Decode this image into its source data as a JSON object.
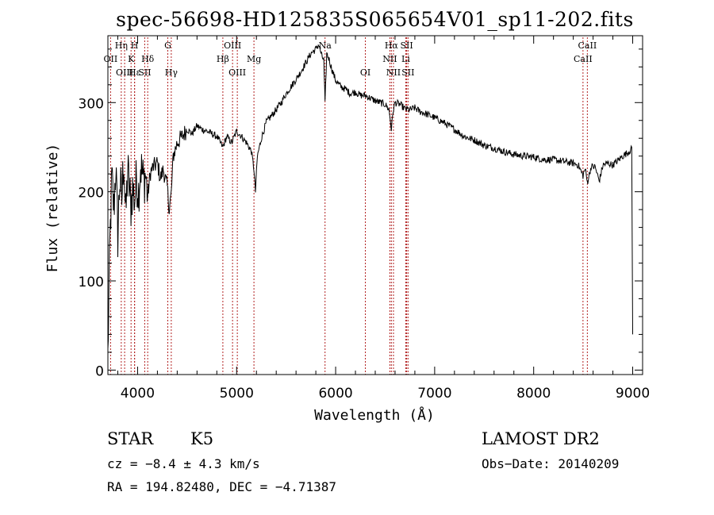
{
  "title": "spec-56698-HD125835S065654V01_sp11-202.fits",
  "info": {
    "object_class": "STAR",
    "subclass": "K5",
    "survey": "LAMOST DR2",
    "cz": "cz = −8.4 ± 4.3 km/s",
    "obs_date": "Obs−Date: 20140209",
    "coords": "RA = 194.82480, DEC =  −4.71387"
  },
  "chart_data": {
    "type": "line",
    "title": "spec-56698-HD125835S065654V01_sp11-202.fits",
    "xlabel": "Wavelength (Å)",
    "ylabel": "Flux (relative)",
    "xlim": [
      3700,
      9100
    ],
    "ylim": [
      -5,
      375
    ],
    "xticks": [
      4000,
      5000,
      6000,
      7000,
      8000,
      9000
    ],
    "yticks": [
      0,
      100,
      200,
      300
    ],
    "xticklabels": [
      "4000",
      "5000",
      "6000",
      "7000",
      "8000",
      "9000"
    ],
    "yticklabels": [
      "0",
      "100",
      "200",
      "300"
    ],
    "grid": false,
    "line_color": "#000000",
    "marker_color": "#b22222",
    "series": [
      {
        "x": [
          3700,
          3720,
          3740,
          3760,
          3780,
          3800,
          3820,
          3840,
          3860,
          3880,
          3900,
          3920,
          3933,
          3950,
          3969,
          3990,
          4010,
          4030,
          4060,
          4080,
          4102,
          4130,
          4160,
          4200,
          4230,
          4260,
          4300,
          4320,
          4340,
          4360,
          4400,
          4450,
          4500,
          4550,
          4600,
          4650,
          4700,
          4750,
          4800,
          4861,
          4900,
          4950,
          5000,
          5050,
          5100,
          5150,
          5175,
          5190,
          5210,
          5250,
          5300,
          5350,
          5400,
          5450,
          5500,
          5550,
          5600,
          5650,
          5700,
          5750,
          5800,
          5830,
          5860,
          5880,
          5893,
          5910,
          5930,
          5960,
          6000,
          6050,
          6100,
          6150,
          6200,
          6250,
          6300,
          6350,
          6400,
          6450,
          6500,
          6540,
          6563,
          6580,
          6600,
          6650,
          6700,
          6750,
          6800,
          6850,
          6900,
          7000,
          7100,
          7200,
          7300,
          7400,
          7500,
          7600,
          7700,
          7800,
          7900,
          8000,
          8100,
          8200,
          8300,
          8400,
          8450,
          8498,
          8520,
          8542,
          8580,
          8620,
          8662,
          8700,
          8750,
          8800,
          8850,
          8900,
          8950,
          8990,
          9000
        ],
        "values": [
          15,
          140,
          215,
          180,
          230,
          150,
          215,
          190,
          240,
          170,
          225,
          200,
          185,
          205,
          190,
          215,
          200,
          230,
          212,
          220,
          195,
          222,
          228,
          232,
          215,
          225,
          205,
          180,
          198,
          240,
          255,
          262,
          270,
          265,
          274,
          270,
          268,
          265,
          262,
          250,
          262,
          255,
          268,
          262,
          255,
          245,
          225,
          200,
          240,
          260,
          278,
          285,
          292,
          300,
          310,
          318,
          326,
          335,
          345,
          355,
          360,
          365,
          352,
          348,
          298,
          355,
          350,
          338,
          325,
          318,
          315,
          310,
          312,
          308,
          308,
          305,
          302,
          300,
          298,
          292,
          270,
          290,
          300,
          298,
          293,
          292,
          294,
          290,
          288,
          283,
          277,
          270,
          262,
          258,
          252,
          249,
          245,
          242,
          240,
          239,
          236,
          236,
          234,
          232,
          230,
          218,
          226,
          210,
          228,
          228,
          212,
          230,
          232,
          230,
          235,
          240,
          244,
          248,
          40
        ]
      }
    ],
    "lines": [
      {
        "name": "OII",
        "wl": 3727,
        "row": 2
      },
      {
        "name": "Hη",
        "wl": 3835,
        "row": 1
      },
      {
        "name": "OIII",
        "wl": 3869,
        "row": 3
      },
      {
        "name": "K",
        "wl": 3934,
        "row": 2
      },
      {
        "name": "H",
        "wl": 3969,
        "row": 1
      },
      {
        "name": "Hε",
        "wl": 3970,
        "row": 3
      },
      {
        "name": "SII",
        "wl": 4072,
        "row": 3
      },
      {
        "name": "Hδ",
        "wl": 4102,
        "row": 2
      },
      {
        "name": "G",
        "wl": 4305,
        "row": 1
      },
      {
        "name": "Hγ",
        "wl": 4340,
        "row": 3
      },
      {
        "name": "Hβ",
        "wl": 4861,
        "row": 2
      },
      {
        "name": "OIII",
        "wl": 4959,
        "row": 1
      },
      {
        "name": "OIII",
        "wl": 5007,
        "row": 3
      },
      {
        "name": "Mg",
        "wl": 5175,
        "row": 2
      },
      {
        "name": "Na",
        "wl": 5893,
        "row": 1
      },
      {
        "name": "OI",
        "wl": 6300,
        "row": 3
      },
      {
        "name": "NII",
        "wl": 6548,
        "row": 2
      },
      {
        "name": "Hα",
        "wl": 6563,
        "row": 1
      },
      {
        "name": "NII",
        "wl": 6584,
        "row": 3
      },
      {
        "name": "Li",
        "wl": 6708,
        "row": 2
      },
      {
        "name": "SII",
        "wl": 6717,
        "row": 1
      },
      {
        "name": "SII",
        "wl": 6731,
        "row": 3
      },
      {
        "name": "CaII",
        "wl": 8498,
        "row": 2
      },
      {
        "name": "CaII",
        "wl": 8542,
        "row": 1
      }
    ]
  }
}
